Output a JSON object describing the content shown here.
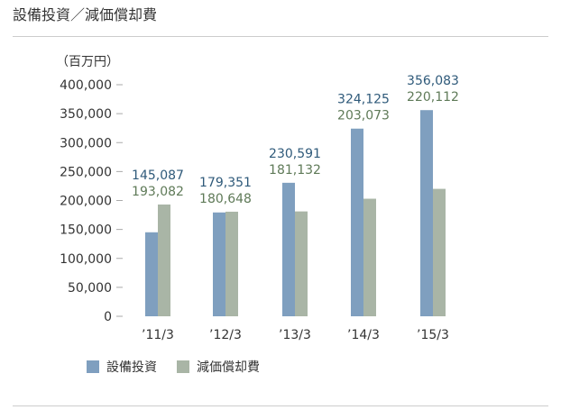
{
  "page": {
    "title": "設備投資／減価償却費"
  },
  "chart_data": {
    "type": "bar",
    "title": "設備投資／減価償却費",
    "unit_label": "（百万円）",
    "categories": [
      "’11/3",
      "’12/3",
      "’13/3",
      "’14/3",
      "’15/3"
    ],
    "y_ticks": [
      "400,000",
      "350,000",
      "300,000",
      "250,000",
      "200,000",
      "150,000",
      "100,000",
      "50,000",
      "0"
    ],
    "ylim": [
      0,
      400000
    ],
    "grid": false,
    "legend_position": "bottom-left",
    "series": [
      {
        "name": "設備投資",
        "color": "#7f9fbf",
        "label_color": "#2f5a7a",
        "values": [
          145087,
          179351,
          230591,
          324125,
          356083
        ],
        "labels": [
          "145,087",
          "179,351",
          "230,591",
          "324,125",
          "356,083"
        ]
      },
      {
        "name": "減価償却費",
        "color": "#a9b5a6",
        "label_color": "#5f7a58",
        "values": [
          193082,
          180648,
          181132,
          203073,
          220112
        ],
        "labels": [
          "193,082",
          "180,648",
          "181,132",
          "203,073",
          "220,112"
        ]
      }
    ]
  }
}
